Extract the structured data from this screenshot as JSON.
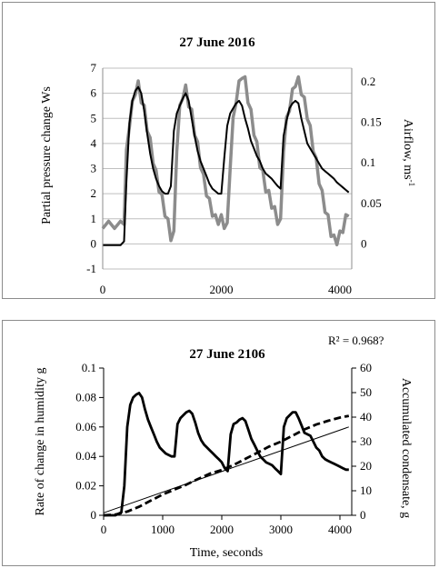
{
  "chart_data": [
    {
      "type": "line",
      "title": "27 June 2016",
      "xlabel": "",
      "ylabel": "Partial pressure change Ws",
      "y2label_main": "Airflow, ms",
      "y2label_sup": "-1",
      "xlim": [
        0,
        4200
      ],
      "ylim": [
        -1,
        7
      ],
      "y2lim": [
        0,
        0.2167
      ],
      "xticks": [
        "0",
        "2000",
        "4000"
      ],
      "xtick_values": [
        0,
        2000,
        4000
      ],
      "yticks": [
        "-1",
        "0",
        "1",
        "2",
        "3",
        "4",
        "5",
        "6",
        "7"
      ],
      "ytick_values": [
        -1,
        0,
        1,
        2,
        3,
        4,
        5,
        6,
        7
      ],
      "y2ticks": [
        "0",
        "0.05",
        "0.1",
        "0.15",
        "0.2"
      ],
      "y2tick_values": [
        0,
        0.05,
        0.1,
        0.15,
        0.2
      ],
      "grid": "horizontal",
      "series": [
        {
          "axis": "right",
          "color": "#8c8c8c",
          "x": [
            0,
            100,
            200,
            300,
            360,
            400,
            450,
            500,
            550,
            600,
            650,
            700,
            750,
            800,
            850,
            900,
            950,
            1000,
            1050,
            1100,
            1150,
            1200,
            1250,
            1300,
            1350,
            1400,
            1450,
            1500,
            1550,
            1600,
            1650,
            1700,
            1750,
            1800,
            1850,
            1900,
            1950,
            2000,
            2050,
            2100,
            2150,
            2200,
            2250,
            2300,
            2350,
            2400,
            2450,
            2500,
            2550,
            2600,
            2650,
            2700,
            2750,
            2800,
            2850,
            2900,
            2950,
            3000,
            3050,
            3100,
            3150,
            3200,
            3250,
            3300,
            3350,
            3400,
            3450,
            3500,
            3550,
            3600,
            3650,
            3700,
            3750,
            3800,
            3850,
            3900,
            3950,
            4000,
            4050,
            4100,
            4150
          ],
          "y": [
            0.025,
            0.022,
            0.025,
            0.022,
            0.03,
            0.11,
            0.15,
            0.17,
            0.19,
            0.195,
            0.18,
            0.165,
            0.145,
            0.125,
            0.105,
            0.085,
            0.07,
            0.055,
            0.04,
            0.025,
            0.01,
            0.01,
            0.12,
            0.165,
            0.185,
            0.19,
            0.175,
            0.16,
            0.14,
            0.12,
            0.1,
            0.08,
            0.065,
            0.05,
            0.04,
            0.03,
            0.03,
            0.03,
            0.025,
            0.02,
            0.1,
            0.15,
            0.18,
            0.195,
            0.21,
            0.2,
            0.18,
            0.16,
            0.14,
            0.12,
            0.1,
            0.085,
            0.07,
            0.06,
            0.05,
            0.04,
            0.03,
            0.025,
            0.12,
            0.15,
            0.17,
            0.185,
            0.2,
            0.2,
            0.19,
            0.175,
            0.16,
            0.14,
            0.12,
            0.1,
            0.08,
            0.06,
            0.045,
            0.03,
            0.015,
            0.005,
            0.005,
            0.01,
            0.02,
            0.03,
            0.04
          ]
        },
        {
          "axis": "left",
          "color": "#000000",
          "x": [
            0,
            100,
            200,
            300,
            360,
            400,
            450,
            500,
            550,
            600,
            650,
            700,
            750,
            800,
            850,
            900,
            950,
            1000,
            1050,
            1100,
            1150,
            1200,
            1250,
            1300,
            1350,
            1400,
            1450,
            1500,
            1550,
            1600,
            1650,
            1700,
            1750,
            1800,
            1850,
            1900,
            1950,
            2000,
            2050,
            2100,
            2150,
            2200,
            2250,
            2300,
            2350,
            2400,
            2450,
            2500,
            2550,
            2600,
            2650,
            2700,
            2750,
            2800,
            2850,
            2900,
            2950,
            3000,
            3050,
            3100,
            3150,
            3200,
            3250,
            3300,
            3350,
            3400,
            3450,
            3500,
            3550,
            3600,
            3650,
            3700,
            3750,
            3800,
            3850,
            3900,
            3950,
            4000,
            4050,
            4100,
            4150
          ],
          "y": [
            -0.05,
            -0.05,
            -0.05,
            -0.05,
            0.1,
            2.5,
            4.8,
            5.7,
            6.1,
            6.25,
            6.0,
            5.3,
            4.4,
            3.6,
            3.0,
            2.6,
            2.3,
            2.1,
            2.0,
            2.0,
            2.3,
            4.5,
            5.2,
            5.5,
            5.8,
            6.0,
            5.7,
            5.0,
            4.3,
            3.7,
            3.3,
            3.0,
            2.7,
            2.4,
            2.2,
            2.1,
            2.0,
            2.0,
            3.4,
            4.7,
            5.2,
            5.4,
            5.6,
            5.7,
            5.5,
            5.0,
            4.6,
            4.1,
            3.8,
            3.5,
            3.3,
            3.0,
            2.8,
            2.7,
            2.6,
            2.45,
            2.3,
            2.2,
            4.3,
            4.9,
            5.4,
            5.6,
            5.7,
            5.6,
            5.0,
            4.5,
            4.0,
            3.8,
            3.6,
            3.4,
            3.2,
            3.0,
            2.9,
            2.8,
            2.7,
            2.6,
            2.45,
            2.35,
            2.25,
            2.15,
            2.05
          ]
        }
      ]
    },
    {
      "type": "line",
      "title": "27 June 2106",
      "annotation": "R² = 0.968?",
      "xlabel": "Time,  seconds",
      "ylabel": "Rate of change in humidity g",
      "y2label": "Accumulated condensate, g",
      "xlim": [
        0,
        4200
      ],
      "ylim": [
        0,
        0.1
      ],
      "y2lim": [
        0,
        60
      ],
      "xticks": [
        "0",
        "1000",
        "2000",
        "3000",
        "4000"
      ],
      "xtick_values": [
        0,
        1000,
        2000,
        3000,
        4000
      ],
      "yticks": [
        "0",
        "0.02",
        "0.04",
        "0.06",
        "0.08",
        "0.1"
      ],
      "ytick_values": [
        0,
        0.02,
        0.04,
        0.06,
        0.08,
        0.1
      ],
      "y2ticks": [
        "0",
        "10",
        "20",
        "30",
        "40",
        "50",
        "60"
      ],
      "y2tick_values": [
        0,
        10,
        20,
        30,
        40,
        50,
        60
      ],
      "grid": "none",
      "series": [
        {
          "axis": "left",
          "style": "solid-thick",
          "x": [
            0,
            100,
            200,
            300,
            350,
            400,
            450,
            500,
            550,
            600,
            650,
            700,
            750,
            800,
            850,
            900,
            950,
            1000,
            1050,
            1100,
            1150,
            1200,
            1250,
            1300,
            1350,
            1400,
            1450,
            1500,
            1550,
            1600,
            1650,
            1700,
            1750,
            1800,
            1850,
            1900,
            1950,
            2000,
            2050,
            2100,
            2150,
            2200,
            2250,
            2300,
            2350,
            2400,
            2450,
            2500,
            2550,
            2600,
            2650,
            2700,
            2750,
            2800,
            2850,
            2900,
            2950,
            3000,
            3050,
            3100,
            3150,
            3200,
            3250,
            3300,
            3350,
            3400,
            3450,
            3500,
            3550,
            3600,
            3650,
            3700,
            3750,
            3800,
            3850,
            3900,
            3950,
            4000,
            4050,
            4100,
            4150
          ],
          "y": [
            0,
            0,
            0,
            0.002,
            0.02,
            0.06,
            0.075,
            0.08,
            0.082,
            0.083,
            0.08,
            0.072,
            0.065,
            0.06,
            0.055,
            0.05,
            0.046,
            0.044,
            0.042,
            0.041,
            0.04,
            0.04,
            0.062,
            0.066,
            0.068,
            0.07,
            0.071,
            0.069,
            0.063,
            0.056,
            0.051,
            0.048,
            0.046,
            0.044,
            0.042,
            0.04,
            0.038,
            0.036,
            0.032,
            0.03,
            0.055,
            0.062,
            0.063,
            0.065,
            0.066,
            0.064,
            0.058,
            0.052,
            0.048,
            0.044,
            0.04,
            0.038,
            0.036,
            0.035,
            0.034,
            0.032,
            0.03,
            0.028,
            0.06,
            0.066,
            0.068,
            0.07,
            0.07,
            0.066,
            0.061,
            0.056,
            0.055,
            0.054,
            0.05,
            0.046,
            0.044,
            0.04,
            0.038,
            0.037,
            0.036,
            0.035,
            0.034,
            0.033,
            0.032,
            0.031,
            0.031
          ]
        },
        {
          "axis": "right",
          "style": "dashed-thick",
          "x": [
            0,
            200,
            400,
            600,
            800,
            1000,
            1200,
            1400,
            1600,
            1800,
            2000,
            2200,
            2400,
            2600,
            2800,
            3000,
            3200,
            3400,
            3600,
            3800,
            4000,
            4150
          ],
          "y": [
            0,
            0.3,
            1.5,
            3.5,
            6,
            8.5,
            10.5,
            12.5,
            14.8,
            17,
            18.5,
            20.5,
            23,
            25.5,
            28,
            30,
            32.5,
            35,
            37,
            38.5,
            39.8,
            40.5
          ]
        },
        {
          "axis": "right",
          "style": "solid-thin",
          "x": [
            0,
            4150
          ],
          "y": [
            1,
            36
          ]
        }
      ]
    }
  ]
}
